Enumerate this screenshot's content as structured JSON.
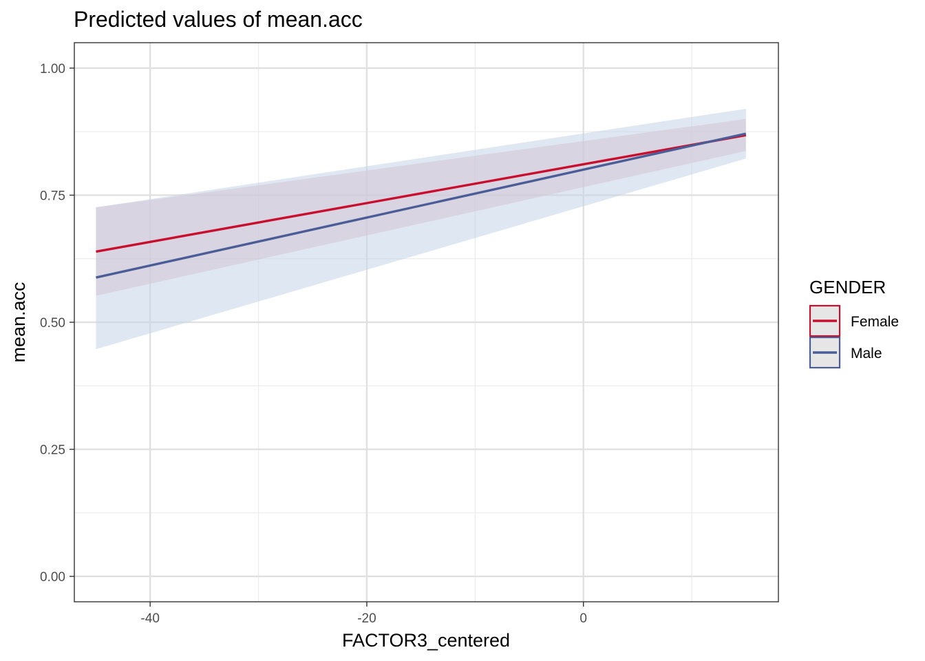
{
  "chart_data": {
    "type": "line",
    "title": "Predicted values of mean.acc",
    "xlabel": "FACTOR3_centered",
    "ylabel": "mean.acc",
    "xlim": [
      -47,
      18
    ],
    "ylim": [
      -0.05,
      1.05
    ],
    "x_ticks": [
      -40,
      -20,
      0
    ],
    "x_tick_labels": [
      "-40",
      "-20",
      "0"
    ],
    "x_minor_ticks": [
      -30,
      -10,
      10
    ],
    "y_ticks": [
      0,
      0.25,
      0.5,
      0.75,
      1
    ],
    "y_tick_labels": [
      "0.00",
      "0.25",
      "0.50",
      "0.75",
      "1.00"
    ],
    "y_minor_ticks": [
      0.125,
      0.375,
      0.625,
      0.875
    ],
    "grid": true,
    "legend": {
      "title": "GENDER",
      "position": "right"
    },
    "series": [
      {
        "name": "Female",
        "color": "#C8102E",
        "ribbon_color": "#E8B4BD",
        "x": [
          -45,
          15
        ],
        "y": [
          0.639,
          0.868
        ],
        "lower": [
          0.552,
          0.837
        ],
        "upper": [
          0.726,
          0.9
        ]
      },
      {
        "name": "Male",
        "color": "#4A5D96",
        "ribbon_color": "#C5D3E8",
        "x": [
          -45,
          15
        ],
        "y": [
          0.588,
          0.871
        ],
        "lower": [
          0.447,
          0.822
        ],
        "upper": [
          0.726,
          0.92
        ]
      }
    ]
  }
}
